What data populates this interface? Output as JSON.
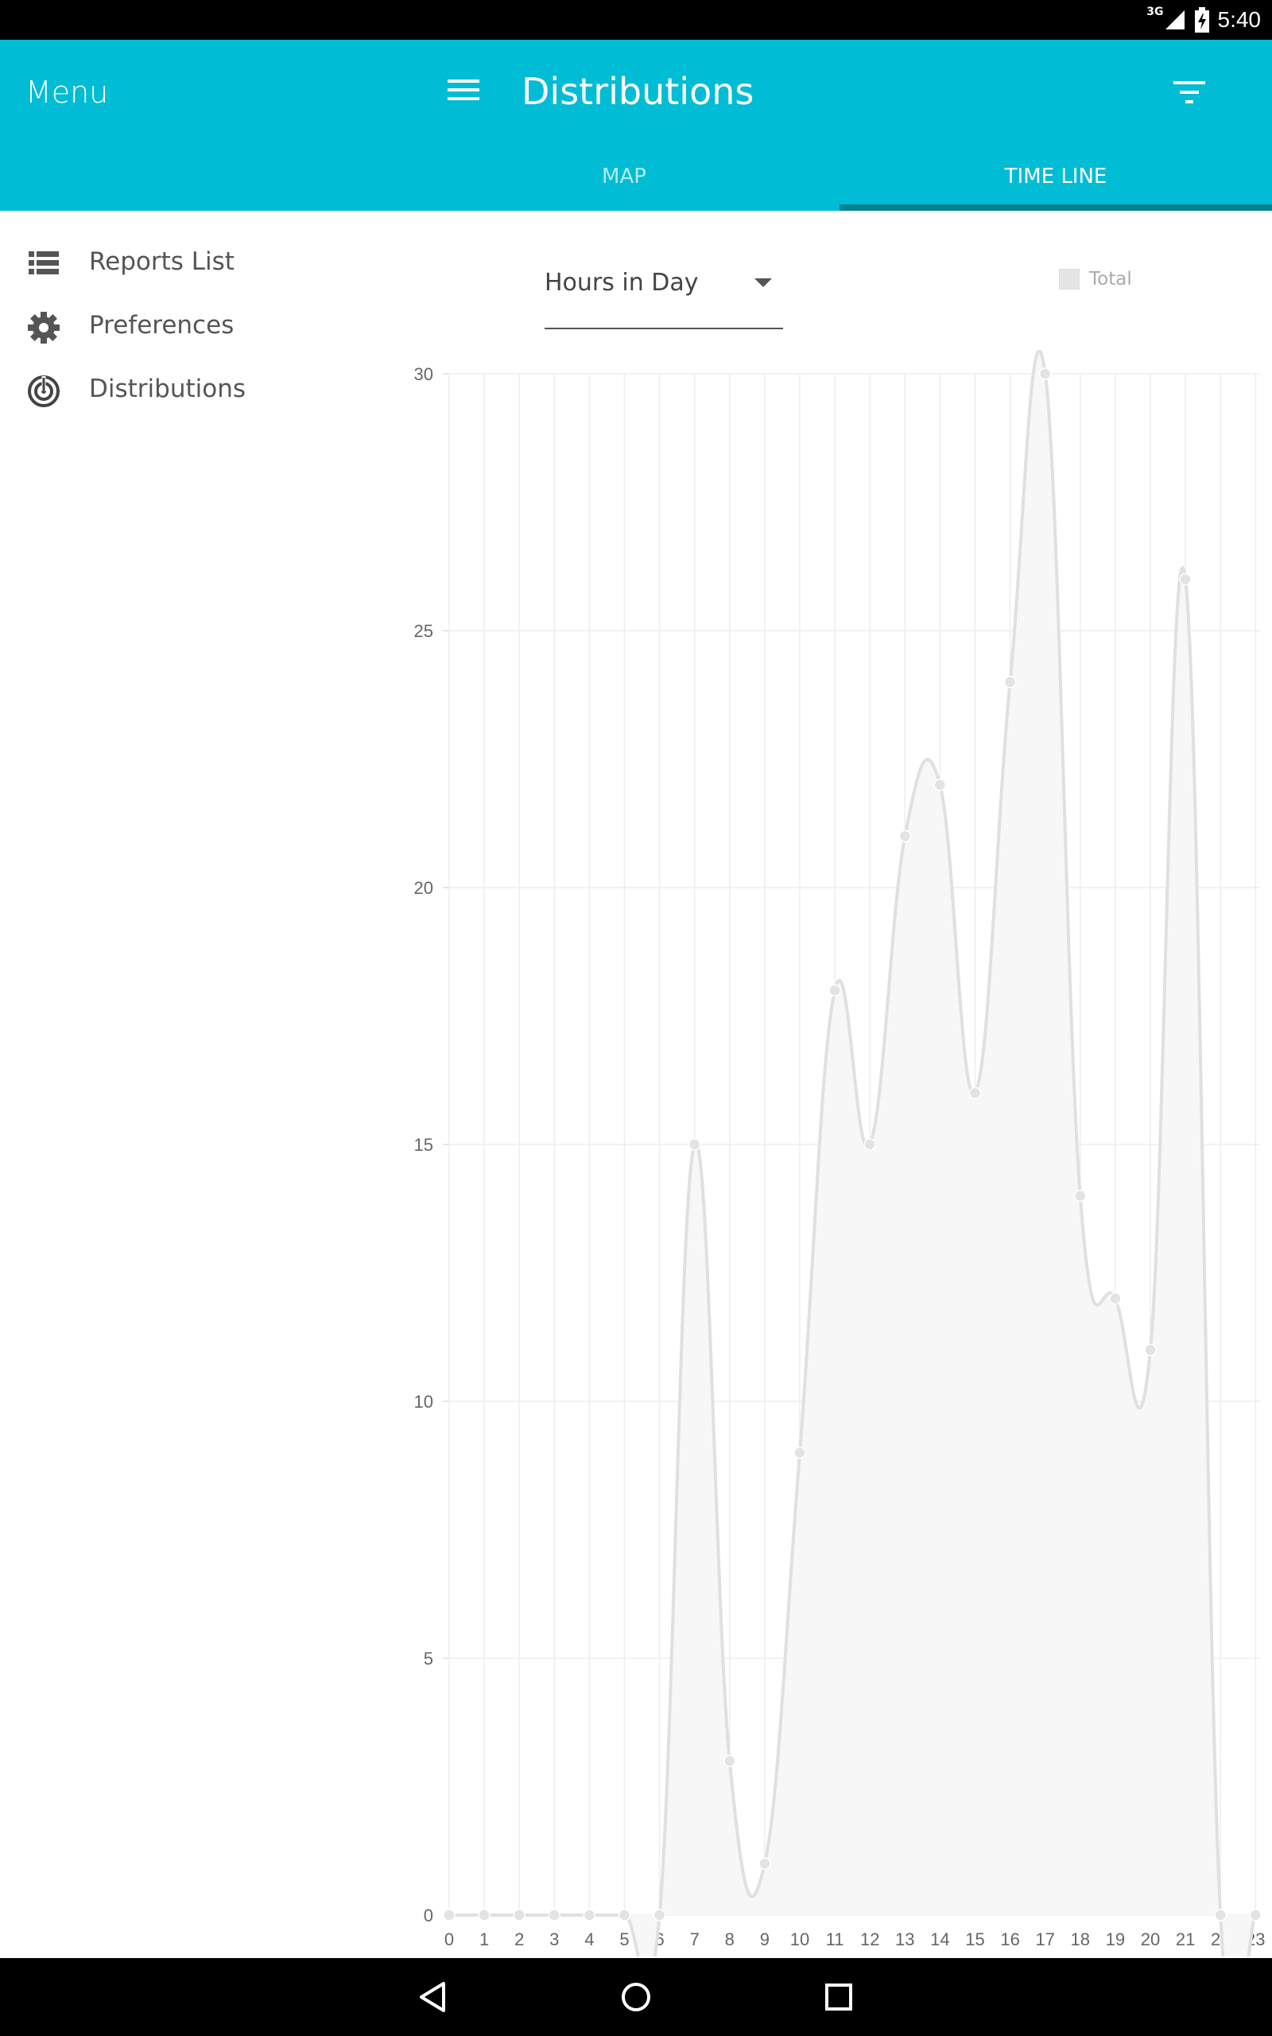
{
  "status_bar": {
    "network": "3G",
    "time": "5:40"
  },
  "app_bar": {
    "menu_title": "Menu",
    "page_title": "Distributions"
  },
  "tabs": [
    {
      "label": "MAP",
      "selected": false
    },
    {
      "label": "TIME LINE",
      "selected": true
    }
  ],
  "sidebar": {
    "items": [
      {
        "label": "Reports List",
        "icon": "list-icon"
      },
      {
        "label": "Preferences",
        "icon": "gear-icon"
      },
      {
        "label": "Distributions",
        "icon": "radar-icon"
      }
    ]
  },
  "dropdown": {
    "selected": "Hours in Day"
  },
  "colors": {
    "accent": "#00bcd4",
    "tab_indicator": "#00838f",
    "series_line": "#e0e0e0",
    "series_fill": "#f7f7f7"
  },
  "chart_data": {
    "type": "area",
    "x": [
      "0",
      "1",
      "2",
      "3",
      "4",
      "5",
      "6",
      "7",
      "8",
      "9",
      "10",
      "11",
      "12",
      "13",
      "14",
      "15",
      "16",
      "17",
      "18",
      "19",
      "20",
      "21",
      "22",
      "23"
    ],
    "series": [
      {
        "name": "Total",
        "values": [
          0,
          0,
          0,
          0,
          0,
          0,
          0,
          15,
          3,
          1,
          9,
          18,
          15,
          21,
          22,
          16,
          24,
          30,
          14,
          12,
          11,
          26,
          0,
          0
        ]
      }
    ],
    "y_ticks": [
      0,
      5,
      10,
      15,
      20,
      25,
      30
    ],
    "ylim": [
      0,
      30
    ],
    "legend": "top-right",
    "grid": true
  }
}
